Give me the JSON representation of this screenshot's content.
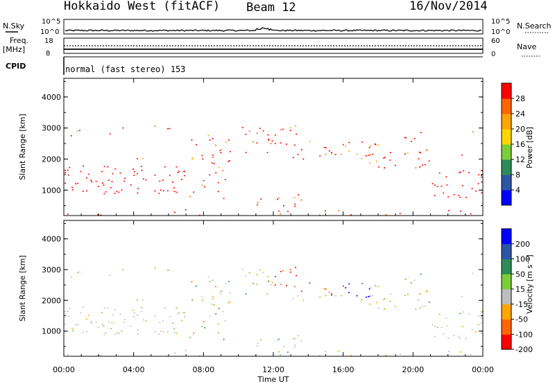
{
  "header": {
    "station": "Hokkaido West (fitACF)",
    "beam": "Beam 12",
    "date": "16/Nov/2014"
  },
  "strip": {
    "nsky_label": "N.Sky",
    "nsearch_label": "N.Search",
    "n_ticks": [
      "10^5",
      "10^0"
    ],
    "freq_label_1": "Freq.",
    "freq_label_2": "[MHz]",
    "freq_ticks": [
      "18",
      "8"
    ],
    "nave_label": "Nave",
    "nave_ticks": [
      "60",
      "0"
    ],
    "cpid_label": "CPID",
    "cpid_text": "normal (fast stereo) 153"
  },
  "colors": {
    "power": [
      "#0000ff",
      "#2b56a8",
      "#2e8b57",
      "#7ccd3a",
      "#ffd700",
      "#ffa500",
      "#ff6600",
      "#ff0000"
    ],
    "velocity": [
      "#0000ff",
      "#2b56a8",
      "#2e8b57",
      "#7ccd3a",
      "#bebebe",
      "#ffa500",
      "#ff6600",
      "#ff0000"
    ]
  },
  "chart_data": [
    {
      "type": "heatmap",
      "panel": "power",
      "ylabel": "Slant Range [km]",
      "ylim": [
        180,
        4600
      ],
      "yticks": [
        "1000",
        "2000",
        "3000",
        "4000"
      ],
      "xlim_hours": [
        0,
        24
      ],
      "colorbar_label": "Power [dB]",
      "colorbar_ticks": [
        "4",
        "8",
        "12",
        "16",
        "20",
        "24",
        "28"
      ],
      "colorbar_range": [
        0,
        32
      ]
    },
    {
      "type": "heatmap",
      "panel": "velocity",
      "ylabel": "Slant Range [km]",
      "ylim": [
        180,
        4600
      ],
      "yticks": [
        "1000",
        "2000",
        "3000",
        "4000"
      ],
      "xlim_hours": [
        0,
        24
      ],
      "colorbar_label": "Velocity [m s⁻¹]",
      "colorbar_ticks": [
        "200",
        "100",
        "50",
        "15",
        "-15",
        "-50",
        "-100",
        "-200"
      ]
    }
  ],
  "xaxis": {
    "ticks": [
      "00:00",
      "04:00",
      "08:00",
      "12:00",
      "16:00",
      "20:00",
      "00:00"
    ],
    "label": "Time UT"
  }
}
